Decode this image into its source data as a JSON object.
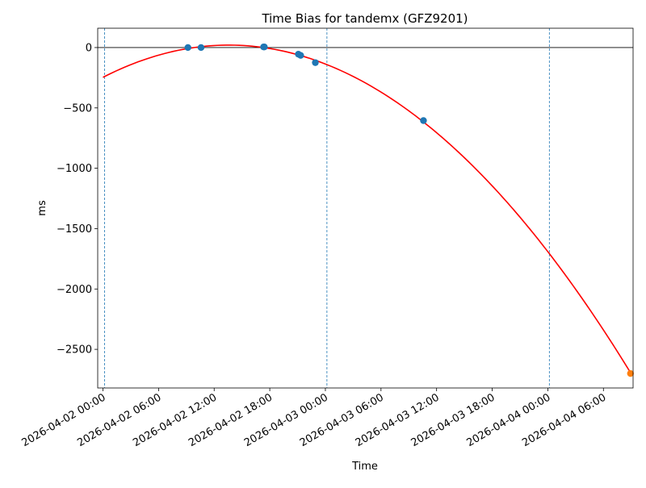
{
  "chart_data": {
    "type": "scatter",
    "title": "Time Bias for tandemx (GFZ9201)",
    "xlabel": "Time",
    "ylabel": "ms",
    "xlim": [
      "2026-04-01 23:26",
      "2026-04-04 09:12"
    ],
    "ylim": [
      -2820,
      160
    ],
    "x_ticks": [
      "2026-04-02 00:00",
      "2026-04-02 06:00",
      "2026-04-02 12:00",
      "2026-04-02 18:00",
      "2026-04-03 00:00",
      "2026-04-03 06:00",
      "2026-04-03 12:00",
      "2026-04-03 18:00",
      "2026-04-04 00:00",
      "2026-04-04 06:00"
    ],
    "y_ticks": [
      0,
      -500,
      -1000,
      -1500,
      -2000,
      -2500
    ],
    "y_tick_labels": [
      "0",
      "−500",
      "−1000",
      "−1500",
      "−2000",
      "−2500"
    ],
    "vertical_lines": [
      "2026-04-02 00:10",
      "2026-04-03 00:10",
      "2026-04-04 00:10"
    ],
    "zero_line": 0,
    "grid": false,
    "series": [
      {
        "kind": "scatter",
        "color": "#1f77b4",
        "x": [
          "2026-04-02 09:10",
          "2026-04-02 10:35",
          "2026-04-02 17:20",
          "2026-04-02 17:25",
          "2026-04-02 21:05",
          "2026-04-02 21:20",
          "2026-04-02 22:55",
          "2026-04-03 10:35"
        ],
        "y": [
          0,
          0,
          5,
          5,
          -55,
          -65,
          -125,
          -605
        ]
      },
      {
        "kind": "scatter",
        "color": "#ff7f0e",
        "x": [
          "2026-04-04 08:55"
        ],
        "y": [
          -2700
        ]
      },
      {
        "kind": "fit-curve",
        "color": "#ff0000",
        "x": [
          "2026-04-02 00:00",
          "2026-04-02 06:00",
          "2026-04-02 12:00",
          "2026-04-02 18:00",
          "2026-04-03 00:00",
          "2026-04-03 06:00",
          "2026-04-03 12:00",
          "2026-04-03 18:00",
          "2026-04-04 00:00",
          "2026-04-04 06:00",
          "2026-04-04 08:55"
        ],
        "y": [
          -235,
          -65,
          10,
          -20,
          -150,
          -380,
          -650,
          -1150,
          -1710,
          -2330,
          -2700
        ]
      }
    ]
  }
}
